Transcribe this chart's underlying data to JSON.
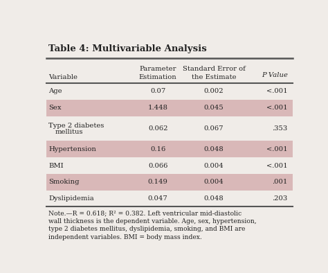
{
  "title": "Table 4: Multivariable Analysis",
  "rows": [
    {
      "variable": "Age",
      "param": "0.07",
      "se": "0.002",
      "pval": "<.001",
      "shaded": false,
      "multiline": false
    },
    {
      "variable": "Sex",
      "param": "1.448",
      "se": "0.045",
      "pval": "<.001",
      "shaded": true,
      "multiline": false
    },
    {
      "variable": "Type 2 diabetes",
      "variable2": "mellitus",
      "param": "0.062",
      "se": "0.067",
      "pval": ".353",
      "shaded": false,
      "multiline": true
    },
    {
      "variable": "Hypertension",
      "param": "0.16",
      "se": "0.048",
      "pval": "<.001",
      "shaded": true,
      "multiline": false
    },
    {
      "variable": "BMI",
      "param": "0.066",
      "se": "0.004",
      "pval": "<.001",
      "shaded": false,
      "multiline": false
    },
    {
      "variable": "Smoking",
      "param": "0.149",
      "se": "0.004",
      "pval": ".001",
      "shaded": true,
      "multiline": false
    },
    {
      "variable": "Dyslipidemia",
      "param": "0.047",
      "se": "0.048",
      "pval": ".203",
      "shaded": false,
      "multiline": false
    }
  ],
  "note_lines": [
    "Note.—R = 0.618; R² = 0.382. Left ventricular mid-diastolic",
    "wall thickness is the dependent variable. Age, sex, hypertension,",
    "type 2 diabetes mellitus, dyslipidemia, smoking, and BMI are",
    "independent variables. BMI = body mass index."
  ],
  "shaded_color": "#d9b8b8",
  "background_color": "#f0ece8",
  "text_color": "#222222",
  "line_color": "#555555"
}
